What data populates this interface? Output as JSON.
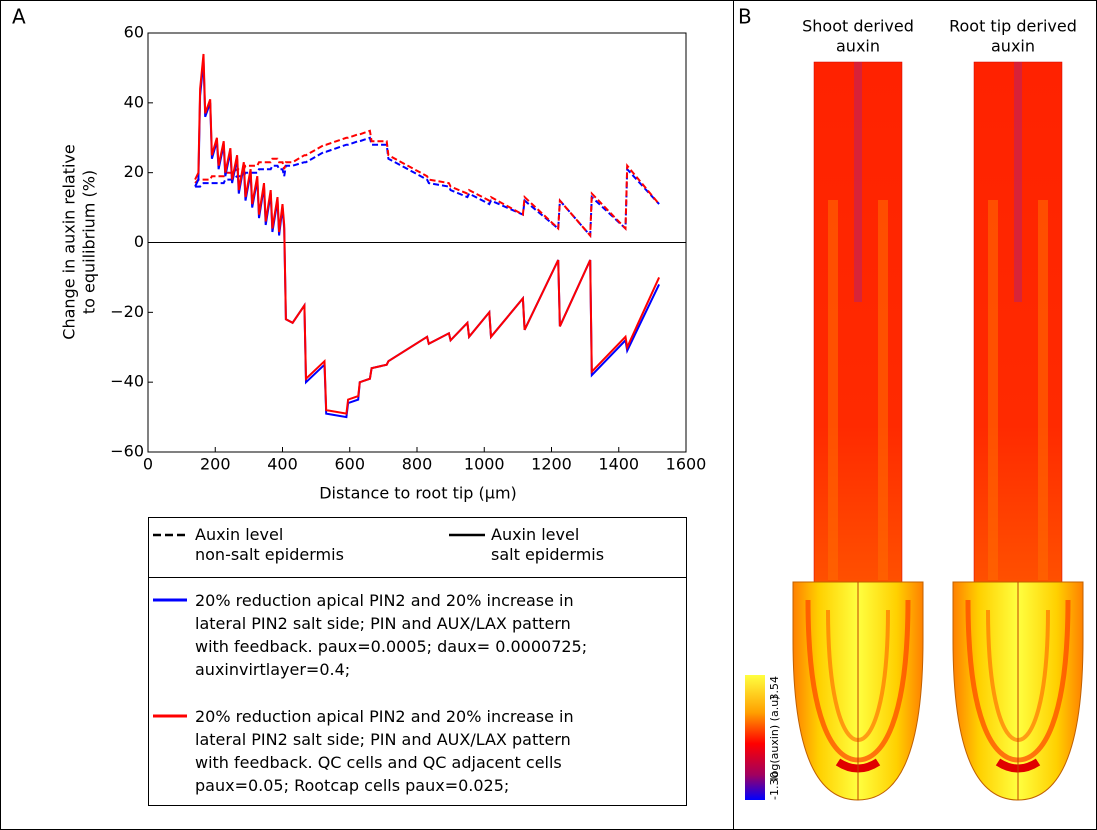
{
  "chart_data": {
    "type": "line",
    "panel_labels": [
      "A",
      "B"
    ],
    "xlabel": "Distance to root tip (μm)",
    "ylabel": [
      "Change in auxin relative",
      "to equilibrium (%)"
    ],
    "xlim": [
      0,
      1600
    ],
    "ylim": [
      -60,
      60
    ],
    "xticks": [
      0,
      200,
      400,
      600,
      800,
      1000,
      1200,
      1400,
      1600
    ],
    "yticks": [
      {
        "value": -60,
        "label": "−60"
      },
      {
        "value": -40,
        "label": "−40"
      },
      {
        "value": -20,
        "label": "−20"
      },
      0,
      20,
      40,
      60
    ],
    "x": [
      140,
      150,
      155,
      165,
      170,
      185,
      190,
      205,
      210,
      225,
      230,
      245,
      250,
      265,
      270,
      285,
      290,
      305,
      310,
      325,
      330,
      345,
      350,
      365,
      370,
      385,
      390,
      400,
      405,
      410,
      430,
      465,
      470,
      525,
      530,
      590,
      595,
      625,
      630,
      660,
      665,
      710,
      715,
      830,
      835,
      895,
      900,
      950,
      955,
      1015,
      1020,
      1115,
      1120,
      1220,
      1225,
      1315,
      1320,
      1420,
      1425,
      1520
    ],
    "series": [
      {
        "color": "#0000ff",
        "dashed": true,
        "values": [
          16,
          16,
          16,
          17,
          17,
          17,
          17,
          17,
          17,
          17,
          18,
          18,
          18,
          19,
          19,
          19,
          20,
          20,
          20,
          20,
          21,
          21,
          21,
          21,
          22,
          22,
          21,
          21,
          19,
          22,
          22,
          23,
          23,
          26,
          26,
          28,
          28,
          29,
          29,
          30,
          28,
          28,
          24,
          18,
          17,
          16,
          15,
          13,
          14,
          11,
          12,
          8,
          12,
          4,
          12,
          2,
          13,
          4,
          21,
          11
        ]
      },
      {
        "color": "#ff0000",
        "dashed": true,
        "values": [
          17,
          18,
          18,
          18,
          18,
          18,
          19,
          19,
          19,
          19,
          20,
          20,
          20,
          21,
          21,
          21,
          22,
          22,
          22,
          22,
          23,
          23,
          23,
          23,
          24,
          24,
          23,
          23,
          21,
          23,
          23,
          25,
          25,
          28,
          28,
          30,
          30,
          31,
          31,
          32,
          29,
          29,
          25,
          19,
          18,
          17,
          16,
          14,
          15,
          12,
          13,
          8,
          13,
          4,
          12,
          2,
          14,
          4,
          22,
          11
        ]
      },
      {
        "color": "#0000ff",
        "dashed": false,
        "values": [
          16,
          18,
          42,
          52,
          36,
          40,
          24,
          29,
          21,
          28,
          19,
          26,
          17,
          24,
          14,
          22,
          12,
          20,
          10,
          18,
          7,
          16,
          5,
          14,
          3,
          12,
          2,
          10,
          4,
          -22,
          -23,
          -18,
          -40,
          -35,
          -49,
          -50,
          -46,
          -45,
          -40,
          -39,
          -36,
          -35,
          -34,
          -27,
          -29,
          -26,
          -28,
          -23,
          -27,
          -20,
          -27,
          -16,
          -25,
          -5,
          -24,
          -5,
          -38,
          -28,
          -31,
          -12
        ]
      },
      {
        "color": "#ff0000",
        "dashed": false,
        "values": [
          18,
          20,
          44,
          54,
          37,
          41,
          25,
          30,
          22,
          29,
          20,
          27,
          18,
          25,
          15,
          23,
          13,
          21,
          11,
          19,
          8,
          17,
          6,
          15,
          4,
          13,
          3,
          11,
          5,
          -22,
          -23,
          -18,
          -39,
          -34,
          -48,
          -49,
          -45,
          -44,
          -40,
          -39,
          -36,
          -35,
          -34,
          -27,
          -29,
          -26,
          -28,
          -23,
          -27,
          -20,
          -27,
          -16,
          -25,
          -5,
          -24,
          -5,
          -37,
          -27,
          -30,
          -10
        ]
      }
    ],
    "legend": {
      "style_entries": [
        {
          "dashed": true,
          "lines": [
            "Auxin level",
            "non-salt epidermis"
          ]
        },
        {
          "dashed": false,
          "lines": [
            "Auxin level",
            "salt epidermis"
          ]
        }
      ],
      "color_entries": [
        {
          "color": "#0000ff",
          "lines": [
            "20% reduction apical PIN2 and 20% increase in",
            "lateral PIN2 salt side; PIN and AUX/LAX pattern",
            "with feedback. paux=0.0005; daux= 0.0000725;",
            "auxinvirtlayer=0.4;"
          ]
        },
        {
          "color": "#ff0000",
          "lines": [
            "20% reduction apical PIN2 and 20% increase in",
            "lateral PIN2 salt side; PIN and AUX/LAX pattern",
            "with feedback. QC cells and QC adjacent cells",
            "paux=0.05; Rootcap cells paux=0.025;"
          ]
        }
      ]
    },
    "root_titles": [
      [
        "Shoot derived",
        "auxin"
      ],
      [
        "Root tip derived",
        "auxin"
      ]
    ],
    "colorbar": {
      "label": "log(auxin) (a.u)",
      "min": {
        "value": -1.3,
        "label": "-1.30"
      },
      "max": 3.54
    }
  }
}
